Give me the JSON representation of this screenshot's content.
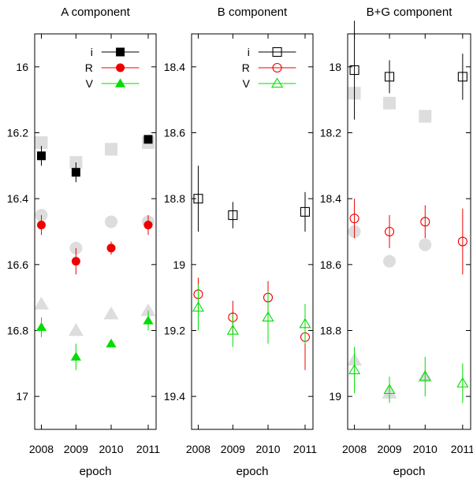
{
  "chart_data": [
    {
      "type": "scatter",
      "title": "A component",
      "xlabel": "epoch",
      "ylabel": "",
      "x_categories": [
        "2008",
        "2009",
        "2010",
        "2011"
      ],
      "ylim": [
        17.1,
        15.9
      ],
      "y_ticks": [
        16,
        16.2,
        16.4,
        16.6,
        16.8,
        17
      ],
      "y_tick_labels": [
        "16",
        "16.2",
        "16.4",
        "16.6",
        "16.8",
        "17"
      ],
      "legend": [
        {
          "label": "i",
          "marker": "square",
          "fill": true,
          "color": "#000000"
        },
        {
          "label": "R",
          "marker": "circle",
          "fill": true,
          "color": "#ee0000"
        },
        {
          "label": "V",
          "marker": "triangle",
          "fill": true,
          "color": "#00dd00"
        }
      ],
      "series": [
        {
          "name": "i",
          "marker": "square",
          "fill": true,
          "color": "#000000",
          "points": [
            {
              "x": "2008",
              "y": 16.27,
              "err": 0.03
            },
            {
              "x": "2009",
              "y": 16.32,
              "err": 0.03
            },
            {
              "x": "2011",
              "y": 16.22,
              "err": 0.01
            }
          ]
        },
        {
          "name": "R",
          "marker": "circle",
          "fill": true,
          "color": "#ee0000",
          "points": [
            {
              "x": "2008",
              "y": 16.48,
              "err": 0.03
            },
            {
              "x": "2009",
              "y": 16.59,
              "err": 0.04
            },
            {
              "x": "2010",
              "y": 16.55,
              "err": 0.02
            },
            {
              "x": "2011",
              "y": 16.48,
              "err": 0.03
            }
          ]
        },
        {
          "name": "V",
          "marker": "triangle",
          "fill": true,
          "color": "#00dd00",
          "points": [
            {
              "x": "2008",
              "y": 16.79,
              "err": 0.03
            },
            {
              "x": "2009",
              "y": 16.88,
              "err": 0.04
            },
            {
              "x": "2010",
              "y": 16.84,
              "err": 0.01
            },
            {
              "x": "2011",
              "y": 16.77,
              "err": 0.03
            }
          ]
        }
      ],
      "reference": [
        {
          "marker": "square",
          "color": "#dddddd",
          "points": [
            {
              "x": "2008",
              "y": 16.23
            },
            {
              "x": "2009",
              "y": 16.29
            },
            {
              "x": "2010",
              "y": 16.25
            },
            {
              "x": "2011",
              "y": 16.23
            }
          ]
        },
        {
          "marker": "circle",
          "color": "#dddddd",
          "points": [
            {
              "x": "2008",
              "y": 16.45
            },
            {
              "x": "2009",
              "y": 16.55
            },
            {
              "x": "2010",
              "y": 16.47
            },
            {
              "x": "2011",
              "y": 16.47
            }
          ]
        },
        {
          "marker": "triangle",
          "color": "#dddddd",
          "points": [
            {
              "x": "2008",
              "y": 16.72
            },
            {
              "x": "2009",
              "y": 16.8
            },
            {
              "x": "2010",
              "y": 16.75
            },
            {
              "x": "2011",
              "y": 16.74
            }
          ]
        }
      ]
    },
    {
      "type": "scatter",
      "title": "B component",
      "xlabel": "epoch",
      "ylabel": "",
      "x_categories": [
        "2008",
        "2009",
        "2010",
        "2011"
      ],
      "ylim": [
        19.5,
        18.3
      ],
      "y_ticks": [
        18.4,
        18.6,
        18.8,
        19,
        19.2,
        19.4
      ],
      "y_tick_labels": [
        "18.4",
        "18.6",
        "18.8",
        "19",
        "19.2",
        "19.4"
      ],
      "legend": [
        {
          "label": "i",
          "marker": "square",
          "fill": false,
          "color": "#000000"
        },
        {
          "label": "R",
          "marker": "circle",
          "fill": false,
          "color": "#ee0000"
        },
        {
          "label": "V",
          "marker": "triangle",
          "fill": false,
          "color": "#00dd00"
        }
      ],
      "series": [
        {
          "name": "i",
          "marker": "square",
          "fill": false,
          "color": "#000000",
          "points": [
            {
              "x": "2008",
              "y": 18.8,
              "err": 0.1
            },
            {
              "x": "2009",
              "y": 18.85,
              "err": 0.04
            },
            {
              "x": "2011",
              "y": 18.84,
              "err": 0.06
            }
          ]
        },
        {
          "name": "R",
          "marker": "circle",
          "fill": false,
          "color": "#ee0000",
          "points": [
            {
              "x": "2008",
              "y": 19.09,
              "err": 0.05
            },
            {
              "x": "2009",
              "y": 19.16,
              "err": 0.05
            },
            {
              "x": "2010",
              "y": 19.1,
              "err": 0.05
            },
            {
              "x": "2011",
              "y": 19.22,
              "err": 0.1
            }
          ]
        },
        {
          "name": "V",
          "marker": "triangle",
          "fill": false,
          "color": "#00dd00",
          "points": [
            {
              "x": "2008",
              "y": 19.13,
              "err": 0.07
            },
            {
              "x": "2009",
              "y": 19.2,
              "err": 0.05
            },
            {
              "x": "2010",
              "y": 19.16,
              "err": 0.08
            },
            {
              "x": "2011",
              "y": 19.18,
              "err": 0.06
            }
          ]
        }
      ],
      "reference": []
    },
    {
      "type": "scatter",
      "title": "B+G component",
      "xlabel": "epoch",
      "ylabel": "",
      "x_categories": [
        "2008",
        "2009",
        "2010",
        "2011"
      ],
      "ylim": [
        19.1,
        17.9
      ],
      "y_ticks": [
        18,
        18.2,
        18.4,
        18.6,
        18.8,
        19
      ],
      "y_tick_labels": [
        "18",
        "18.2",
        "18.4",
        "18.6",
        "18.8",
        "19"
      ],
      "legend": [],
      "series": [
        {
          "name": "i",
          "marker": "square",
          "fill": false,
          "color": "#000000",
          "points": [
            {
              "x": "2008",
              "y": 18.01,
              "err": 0.15
            },
            {
              "x": "2009",
              "y": 18.03,
              "err": 0.05
            },
            {
              "x": "2011",
              "y": 18.03,
              "err": 0.07
            }
          ]
        },
        {
          "name": "R",
          "marker": "circle",
          "fill": false,
          "color": "#ee0000",
          "points": [
            {
              "x": "2008",
              "y": 18.46,
              "err": 0.06
            },
            {
              "x": "2009",
              "y": 18.5,
              "err": 0.05
            },
            {
              "x": "2010",
              "y": 18.47,
              "err": 0.05
            },
            {
              "x": "2011",
              "y": 18.53,
              "err": 0.1
            }
          ]
        },
        {
          "name": "V",
          "marker": "triangle",
          "fill": false,
          "color": "#00dd00",
          "points": [
            {
              "x": "2008",
              "y": 18.92,
              "err": 0.07
            },
            {
              "x": "2009",
              "y": 18.98,
              "err": 0.04
            },
            {
              "x": "2010",
              "y": 18.94,
              "err": 0.06
            },
            {
              "x": "2011",
              "y": 18.96,
              "err": 0.06
            }
          ]
        }
      ],
      "reference": [
        {
          "marker": "square",
          "color": "#dddddd",
          "points": [
            {
              "x": "2008",
              "y": 18.08
            },
            {
              "x": "2009",
              "y": 18.11
            },
            {
              "x": "2010",
              "y": 18.15
            }
          ]
        },
        {
          "marker": "circle",
          "color": "#dddddd",
          "points": [
            {
              "x": "2008",
              "y": 18.5
            },
            {
              "x": "2009",
              "y": 18.59
            },
            {
              "x": "2010",
              "y": 18.54
            }
          ]
        },
        {
          "marker": "triangle",
          "color": "#dddddd",
          "points": [
            {
              "x": "2008",
              "y": 18.89
            },
            {
              "x": "2009",
              "y": 18.99
            },
            {
              "x": "2010",
              "y": 18.94
            }
          ]
        }
      ]
    }
  ]
}
